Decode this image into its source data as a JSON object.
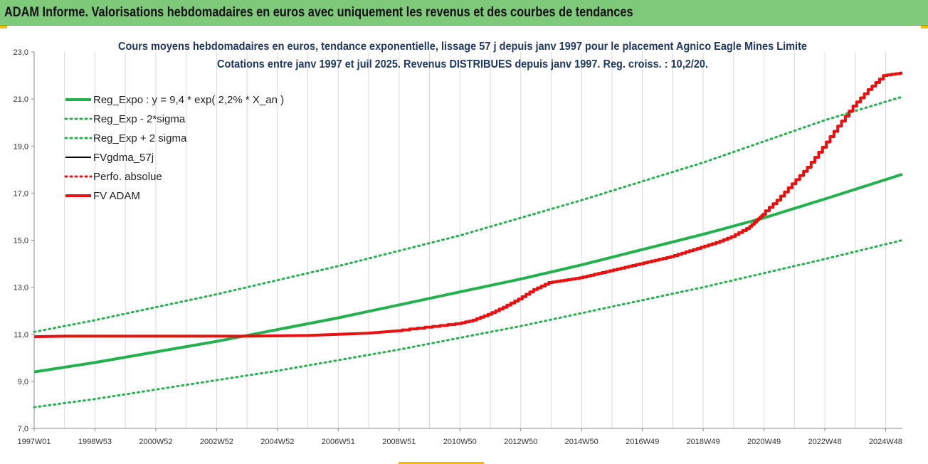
{
  "header": {
    "title": "ADAM Informe. Valorisations hebdomadaires en euros avec uniquement les revenus et des courbes de tendances"
  },
  "colors": {
    "header_bg": "#7fc97a",
    "reg_expo": "#22b14c",
    "sigma": "#22b14c",
    "fvgdma": "#000000",
    "perfo": "#e81010",
    "fvadam": "#e81010",
    "grid": "#d9d9d9"
  },
  "chart_data": {
    "type": "line",
    "title": "Cours moyens hebdomadaires en euros, tendance exponentielle, lissage 57 j depuis janv 1997 pour le placement Agnico Eagle Mines Limite",
    "subtitle": "Cotations entre janv 1997 et juil 2025. Revenus DISTRIBUES depuis janv 1997. Reg. croiss. : 10,2/20.",
    "x_tick_labels": [
      "1997W01",
      "1998W53",
      "2000W52",
      "2002W52",
      "2004W52",
      "2006W51",
      "2008W51",
      "2010W50",
      "2012W50",
      "2014W50",
      "2016W49",
      "2018W49",
      "2020W49",
      "2022W48",
      "2024W48"
    ],
    "x_ticks": [
      1997.0,
      1999.0,
      2001.0,
      2003.0,
      2005.0,
      2007.0,
      2009.0,
      2011.0,
      2013.0,
      2015.0,
      2017.0,
      2019.0,
      2021.0,
      2023.0,
      2025.0
    ],
    "xlim": [
      1997.0,
      2025.55
    ],
    "y_tick_labels": [
      "7,0",
      "9,0",
      "11,0",
      "13,0",
      "15,0",
      "17,0",
      "19,0",
      "21,0",
      "23,0"
    ],
    "y_ticks": [
      7,
      9,
      11,
      13,
      15,
      17,
      19,
      21,
      23
    ],
    "ylim": [
      7,
      23
    ],
    "grid": "vertical",
    "legend_position": "top-left",
    "series": [
      {
        "name": "Reg_Expo : y = 9,4 * exp( 2,2% *  X_an )",
        "style": "solid-thick",
        "color": "#22b14c",
        "x": [
          1997,
          1999,
          2001,
          2003,
          2005,
          2007,
          2009,
          2011,
          2013,
          2015,
          2017,
          2019,
          2021,
          2023,
          2025.55
        ],
        "y": [
          9.4,
          9.8,
          10.25,
          10.7,
          11.2,
          11.7,
          12.25,
          12.8,
          13.35,
          13.95,
          14.6,
          15.25,
          15.95,
          16.75,
          17.8
        ]
      },
      {
        "name": "Reg_Exp - 2*sigma",
        "style": "dotted",
        "color": "#22b14c",
        "x": [
          1997,
          1999,
          2001,
          2003,
          2005,
          2007,
          2009,
          2011,
          2013,
          2015,
          2017,
          2019,
          2021,
          2023,
          2025.55
        ],
        "y": [
          7.9,
          8.25,
          8.65,
          9.05,
          9.45,
          9.9,
          10.35,
          10.85,
          11.35,
          11.9,
          12.45,
          13.0,
          13.6,
          14.2,
          15.0
        ]
      },
      {
        "name": "Reg_Exp + 2 sigma",
        "style": "dotted",
        "color": "#22b14c",
        "x": [
          1997,
          1999,
          2001,
          2003,
          2005,
          2007,
          2009,
          2011,
          2013,
          2015,
          2017,
          2019,
          2021,
          2023,
          2025.55
        ],
        "y": [
          11.1,
          11.6,
          12.15,
          12.7,
          13.3,
          13.9,
          14.55,
          15.2,
          15.95,
          16.7,
          17.5,
          18.3,
          19.2,
          20.1,
          21.1
        ]
      },
      {
        "name": "FVgdma_57j",
        "style": "solid",
        "color": "#000000",
        "x": [],
        "y": []
      },
      {
        "name": "Perfo. absolue",
        "style": "dotted",
        "color": "#e81010",
        "x": [],
        "y": []
      },
      {
        "name": "FV ADAM",
        "style": "solid-thick-stepped",
        "color": "#e81010",
        "x": [
          1997,
          1998,
          2004,
          2006,
          2008,
          2009,
          2010,
          2011,
          2011.5,
          2012,
          2012.5,
          2013,
          2013.5,
          2014,
          2014.5,
          2015,
          2015.5,
          2016,
          2016.5,
          2017,
          2017.5,
          2018,
          2018.5,
          2019,
          2019.5,
          2020,
          2020.5,
          2020.8,
          2021,
          2021.5,
          2022,
          2022.5,
          2023,
          2023.5,
          2024,
          2024.5,
          2025,
          2025.55
        ],
        "y": [
          10.9,
          10.92,
          10.92,
          10.95,
          11.05,
          11.15,
          11.3,
          11.45,
          11.6,
          11.85,
          12.15,
          12.5,
          12.9,
          13.2,
          13.3,
          13.4,
          13.55,
          13.7,
          13.85,
          14.0,
          14.15,
          14.3,
          14.5,
          14.7,
          14.9,
          15.15,
          15.5,
          15.85,
          16.1,
          16.7,
          17.4,
          18.1,
          18.95,
          19.85,
          20.7,
          21.4,
          22.0,
          22.1
        ]
      }
    ]
  }
}
